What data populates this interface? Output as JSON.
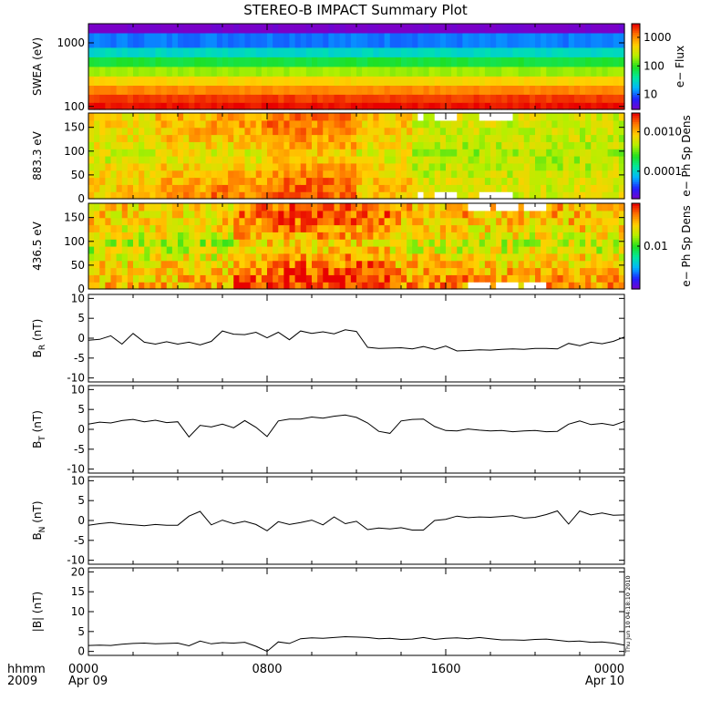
{
  "title": "STEREO-B IMPACT Summary Plot",
  "footer": {
    "time_format": "hhmm",
    "year": "2009",
    "timestamp": "Thu Jun 10 04:18:10 2010"
  },
  "colors": {
    "axis": "#000000",
    "line": "#000000",
    "background": "#ffffff",
    "gap": "#ffffff",
    "colormap": [
      "#7a00c8",
      "#2020ff",
      "#00b4ff",
      "#00e8a0",
      "#20e020",
      "#b4f000",
      "#ffd000",
      "#ff7800",
      "#e80000"
    ]
  },
  "chart_data": [
    {
      "id": "swea",
      "type": "heatmap",
      "ylabel": "SWEA (eV)",
      "yscale": "log",
      "ylim": [
        90,
        2000
      ],
      "yticks": [
        "100",
        "1000"
      ],
      "colorbar": {
        "label": "e− Flux",
        "scale": "log",
        "range": [
          3,
          3000
        ],
        "ticks": [
          "10",
          "100",
          "1000"
        ]
      },
      "rows": [
        {
          "energy": 2000,
          "value": 3
        },
        {
          "energy": 1000,
          "value": 12
        },
        {
          "energy": 700,
          "value": 30
        },
        {
          "energy": 500,
          "value": 80
        },
        {
          "energy": 350,
          "value": 200
        },
        {
          "energy": 250,
          "value": 500
        },
        {
          "energy": 180,
          "value": 1100
        },
        {
          "energy": 130,
          "value": 2000
        },
        {
          "energy": 100,
          "value": 2700
        }
      ]
    },
    {
      "id": "pad883",
      "type": "heatmap",
      "ylabel": "883.3 eV",
      "ylim": [
        0,
        180
      ],
      "yticks": [
        "0",
        "50",
        "100",
        "150"
      ],
      "colorbar": {
        "label": "e− Ph Sp Dens",
        "scale": "log",
        "range": [
          2e-05,
          0.003
        ],
        "ticks": [
          "0.0010",
          "0.0001"
        ]
      },
      "intervals": [
        {
          "start": 0,
          "end": 3,
          "low": 0.0003,
          "high": 0.0009
        },
        {
          "start": 3,
          "end": 5.5,
          "low": 0.0003,
          "high": 0.0012
        },
        {
          "start": 5.5,
          "end": 8,
          "low": 0.00015,
          "high": 0.0015
        },
        {
          "start": 8,
          "end": 12,
          "low": 0.0003,
          "high": 0.0018
        },
        {
          "start": 12,
          "end": 14.5,
          "low": 0.0003,
          "high": 0.001
        },
        {
          "start": 14.5,
          "end": 24,
          "low": 0.0003,
          "high": 0.0006
        }
      ],
      "gaps": [
        [
          14.8,
          15.0
        ],
        [
          15.4,
          16.4
        ],
        [
          17.5,
          19.0
        ]
      ]
    },
    {
      "id": "pad436",
      "type": "heatmap",
      "ylabel": "436.5 eV",
      "ylim": [
        0,
        180
      ],
      "yticks": [
        "0",
        "50",
        "100",
        "150"
      ],
      "colorbar": {
        "label": "e− Ph Sp Dens",
        "scale": "log",
        "range": [
          0.002,
          0.05
        ],
        "ticks": [
          "0.01"
        ]
      },
      "intervals": [
        {
          "start": 0,
          "end": 6.5,
          "low": 0.008,
          "high": 0.025
        },
        {
          "start": 6.5,
          "end": 8,
          "low": 0.01,
          "high": 0.035
        },
        {
          "start": 8,
          "end": 13.5,
          "low": 0.01,
          "high": 0.04
        },
        {
          "start": 13.5,
          "end": 17,
          "low": 0.008,
          "high": 0.03
        },
        {
          "start": 17,
          "end": 24,
          "low": 0.008,
          "high": 0.028
        }
      ],
      "gaps": [
        [
          17.0,
          18.0
        ],
        [
          18.3,
          19.2
        ],
        [
          19.5,
          20.6
        ]
      ]
    },
    {
      "id": "br",
      "type": "line",
      "ylabel": "B_R (nT)",
      "ylim": [
        -11,
        11
      ],
      "yticks": [
        "10",
        "5",
        "0",
        "-5",
        "-10"
      ],
      "x": [
        0,
        0.5,
        1,
        1.5,
        2,
        2.5,
        3,
        3.5,
        4,
        4.5,
        5,
        5.5,
        6,
        6.5,
        7,
        7.5,
        8,
        8.5,
        9,
        9.5,
        10,
        10.5,
        11,
        11.5,
        12,
        12.5,
        13,
        13.5,
        14,
        14.5,
        15,
        15.5,
        16,
        16.5,
        17,
        17.5,
        18,
        18.5,
        19,
        19.5,
        20,
        20.5,
        21,
        21.5,
        22,
        22.5,
        23,
        23.5,
        24
      ],
      "y": [
        -0.5,
        -0.3,
        0.6,
        -1.5,
        1.2,
        -1.0,
        -1.5,
        -0.9,
        -1.5,
        -1.0,
        -1.7,
        -0.8,
        1.8,
        1.0,
        0.9,
        1.5,
        0.1,
        1.5,
        -0.4,
        1.8,
        1.2,
        1.6,
        1.1,
        2.1,
        1.7,
        -2.3,
        -2.6,
        -2.5,
        -2.4,
        -2.7,
        -2.1,
        -2.8,
        -2.0,
        -3.2,
        -3.1,
        -2.9,
        -3.0,
        -2.8,
        -2.7,
        -2.8,
        -2.6,
        -2.6,
        -2.7,
        -1.3,
        -1.9,
        -1.0,
        -1.4,
        -0.8,
        0.3
      ]
    },
    {
      "id": "bt",
      "type": "line",
      "ylabel": "B_T (nT)",
      "ylim": [
        -11,
        11
      ],
      "yticks": [
        "10",
        "5",
        "0",
        "-5",
        "-10"
      ],
      "x": [
        0,
        0.5,
        1,
        1.5,
        2,
        2.5,
        3,
        3.5,
        4,
        4.5,
        5,
        5.5,
        6,
        6.5,
        7,
        7.5,
        8,
        8.5,
        9,
        9.5,
        10,
        10.5,
        11,
        11.5,
        12,
        12.5,
        13,
        13.5,
        14,
        14.5,
        15,
        15.5,
        16,
        16.5,
        17,
        17.5,
        18,
        18.5,
        19,
        19.5,
        20,
        20.5,
        21,
        21.5,
        22,
        22.5,
        23,
        23.5,
        24
      ],
      "y": [
        1.3,
        1.8,
        1.6,
        2.2,
        2.5,
        1.9,
        2.3,
        1.7,
        1.9,
        -1.9,
        1.0,
        0.6,
        1.3,
        0.4,
        2.2,
        0.5,
        -1.8,
        2.1,
        2.6,
        2.6,
        3.1,
        2.8,
        3.3,
        3.6,
        3.0,
        1.6,
        -0.5,
        -1.0,
        2.1,
        2.5,
        2.6,
        0.7,
        -0.3,
        -0.4,
        0.1,
        -0.2,
        -0.4,
        -0.3,
        -0.6,
        -0.4,
        -0.3,
        -0.6,
        -0.5,
        1.3,
        2.1,
        1.2,
        1.5,
        1.0,
        2.0
      ]
    },
    {
      "id": "bn",
      "type": "line",
      "ylabel": "B_N (nT)",
      "ylim": [
        -11,
        11
      ],
      "yticks": [
        "10",
        "5",
        "0",
        "-5",
        "-10"
      ],
      "x": [
        0,
        0.5,
        1,
        1.5,
        2,
        2.5,
        3,
        3.5,
        4,
        4.5,
        5,
        5.5,
        6,
        6.5,
        7,
        7.5,
        8,
        8.5,
        9,
        9.5,
        10,
        10.5,
        11,
        11.5,
        12,
        12.5,
        13,
        13.5,
        14,
        14.5,
        15,
        15.5,
        16,
        16.5,
        17,
        17.5,
        18,
        18.5,
        19,
        19.5,
        20,
        20.5,
        21,
        21.5,
        22,
        22.5,
        23,
        23.5,
        24
      ],
      "y": [
        -1.2,
        -0.8,
        -0.5,
        -0.9,
        -1.1,
        -1.3,
        -1.0,
        -1.2,
        -1.2,
        1.1,
        2.3,
        -1.1,
        0.1,
        -0.8,
        -0.2,
        -1.0,
        -2.6,
        -0.3,
        -1.0,
        -0.5,
        0.1,
        -1.1,
        0.9,
        -0.8,
        -0.2,
        -2.3,
        -1.9,
        -2.1,
        -1.8,
        -2.4,
        -2.4,
        0.0,
        0.3,
        1.1,
        0.7,
        0.9,
        0.8,
        1.0,
        1.2,
        0.6,
        0.8,
        1.5,
        2.4,
        -0.9,
        2.4,
        1.4,
        1.9,
        1.3,
        1.4
      ]
    },
    {
      "id": "bmag",
      "type": "line",
      "ylabel": "|B| (nT)",
      "ylim": [
        -1,
        21
      ],
      "yticks": [
        "20",
        "15",
        "10",
        "5",
        "0"
      ],
      "x": [
        0,
        0.5,
        1,
        1.5,
        2,
        2.5,
        3,
        3.5,
        4,
        4.5,
        5,
        5.5,
        6,
        6.5,
        7,
        7.5,
        8,
        8.5,
        9,
        9.5,
        10,
        10.5,
        11,
        11.5,
        12,
        12.5,
        13,
        13.5,
        14,
        14.5,
        15,
        15.5,
        16,
        16.5,
        17,
        17.5,
        18,
        18.5,
        19,
        19.5,
        20,
        20.5,
        21,
        21.5,
        22,
        22.5,
        23,
        23.5,
        24
      ],
      "y": [
        1.5,
        1.6,
        1.5,
        1.8,
        2.0,
        2.1,
        1.9,
        2.0,
        2.1,
        1.4,
        2.6,
        1.9,
        2.2,
        2.1,
        2.3,
        1.3,
        0.0,
        2.4,
        2.0,
        3.2,
        3.4,
        3.3,
        3.5,
        3.7,
        3.6,
        3.5,
        3.2,
        3.3,
        3.0,
        3.1,
        3.5,
        3.0,
        3.3,
        3.4,
        3.2,
        3.5,
        3.2,
        2.9,
        2.9,
        2.8,
        3.0,
        3.1,
        2.8,
        2.5,
        2.6,
        2.3,
        2.4,
        2.1,
        1.6
      ]
    }
  ],
  "x_axis": {
    "type": "time",
    "xlim": [
      0,
      24
    ],
    "ticks": [
      {
        "t": 0,
        "label": "0000",
        "sublabel": "Apr 09"
      },
      {
        "t": 8,
        "label": "0800",
        "sublabel": ""
      },
      {
        "t": 16,
        "label": "1600",
        "sublabel": ""
      },
      {
        "t": 24,
        "label": "0000",
        "sublabel": "Apr 10"
      }
    ]
  }
}
